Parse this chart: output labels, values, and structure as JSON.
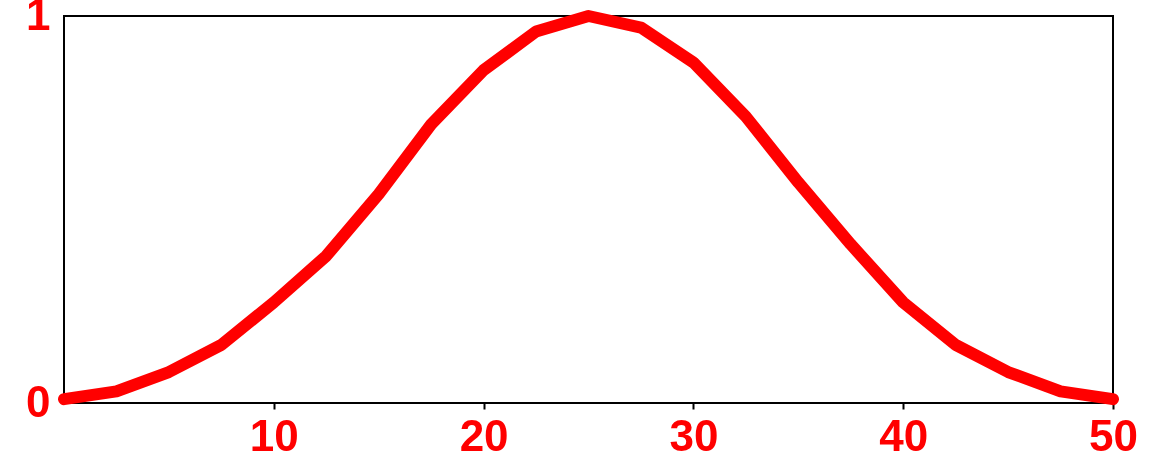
{
  "chart_data": {
    "type": "line",
    "x": [
      0,
      2.5,
      5,
      7.5,
      10,
      12.5,
      15,
      17.5,
      20,
      22.5,
      25,
      27.5,
      30,
      32.5,
      35,
      37.5,
      40,
      42.5,
      45,
      47.5,
      50
    ],
    "series": [
      {
        "color": "#ff0000",
        "values": [
          0.01,
          0.03,
          0.08,
          0.15,
          0.26,
          0.38,
          0.54,
          0.72,
          0.86,
          0.96,
          1,
          0.97,
          0.88,
          0.74,
          0.57,
          0.41,
          0.26,
          0.15,
          0.08,
          0.03,
          0.01
        ]
      }
    ],
    "xlim": [
      0,
      50
    ],
    "ylim": [
      0,
      1
    ],
    "xticks": [
      10,
      20,
      30,
      40,
      50
    ],
    "yticks": [
      0,
      1
    ],
    "grid": false,
    "marker": "none",
    "line_style": "solid"
  }
}
